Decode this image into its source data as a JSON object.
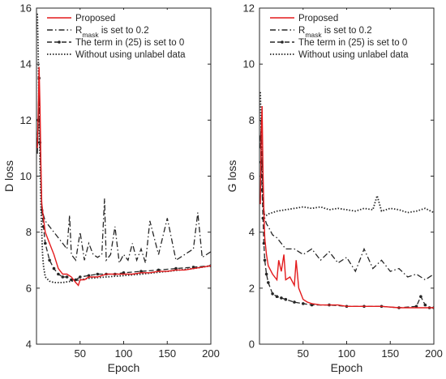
{
  "chart_data": [
    {
      "type": "line",
      "xlabel": "Epoch",
      "ylabel": "D loss",
      "xlim": [
        0,
        200
      ],
      "ylim": [
        4,
        16
      ],
      "xticks": [
        "50",
        "100",
        "150",
        "200"
      ],
      "yticks": [
        "4",
        "6",
        "8",
        "10",
        "12",
        "14",
        "16"
      ],
      "legend_position": "top-right",
      "series": [
        {
          "name": "Proposed",
          "color": "#e31a1c",
          "style": "solid",
          "x": [
            1,
            2,
            3,
            4,
            5,
            6,
            8,
            10,
            15,
            20,
            25,
            30,
            35,
            40,
            45,
            48,
            50,
            55,
            60,
            70,
            80,
            90,
            100,
            110,
            120,
            130,
            140,
            150,
            160,
            170,
            180,
            190,
            200
          ],
          "y": [
            11.0,
            12.2,
            13.9,
            12.5,
            10.5,
            9.0,
            8.5,
            8.0,
            7.6,
            7.2,
            6.7,
            6.5,
            6.5,
            6.4,
            6.2,
            6.1,
            6.3,
            6.3,
            6.4,
            6.4,
            6.5,
            6.5,
            6.5,
            6.5,
            6.55,
            6.55,
            6.6,
            6.6,
            6.65,
            6.65,
            6.7,
            6.75,
            6.8
          ]
        },
        {
          "name": "R_mask is set to 0.2",
          "color": "#262626",
          "style": "dashdot",
          "x": [
            1,
            2,
            3,
            4,
            6,
            8,
            10,
            15,
            20,
            25,
            30,
            35,
            38,
            40,
            45,
            50,
            55,
            60,
            65,
            70,
            75,
            78,
            80,
            85,
            90,
            95,
            100,
            105,
            110,
            115,
            120,
            125,
            130,
            140,
            150,
            160,
            170,
            180,
            185,
            190,
            200
          ],
          "y": [
            10.8,
            11.8,
            13.5,
            11.6,
            9.0,
            8.6,
            8.4,
            8.2,
            8.0,
            7.8,
            7.6,
            7.4,
            8.6,
            7.2,
            7.0,
            8.0,
            7.0,
            7.6,
            7.2,
            7.1,
            7.2,
            9.2,
            7.0,
            7.2,
            8.2,
            6.9,
            7.2,
            7.0,
            7.6,
            7.0,
            7.4,
            6.9,
            8.4,
            7.2,
            8.5,
            7.0,
            7.2,
            7.4,
            8.7,
            7.1,
            7.3
          ]
        },
        {
          "name": "The term in (25) is set to 0",
          "color": "#262626",
          "style": "dashed-markers",
          "x": [
            1,
            2,
            3,
            4,
            6,
            8,
            10,
            15,
            20,
            25,
            30,
            35,
            40,
            45,
            50,
            60,
            70,
            80,
            90,
            100,
            120,
            140,
            160,
            180,
            200
          ],
          "y": [
            11.2,
            12.0,
            13.5,
            11.2,
            8.8,
            8.2,
            7.6,
            7.0,
            6.7,
            6.5,
            6.4,
            6.4,
            6.3,
            6.3,
            6.4,
            6.45,
            6.5,
            6.5,
            6.5,
            6.55,
            6.6,
            6.65,
            6.7,
            6.75,
            6.8
          ]
        },
        {
          "name": "Without using unlabel data",
          "color": "#262626",
          "style": "dotted",
          "x": [
            1,
            2,
            3,
            4,
            5,
            6,
            7,
            8,
            10,
            15,
            20,
            30,
            40,
            50,
            60,
            80,
            100,
            120,
            150,
            180,
            200
          ],
          "y": [
            15.8,
            14.5,
            12.0,
            10.5,
            9.0,
            8.0,
            7.2,
            6.8,
            6.4,
            6.25,
            6.2,
            6.2,
            6.25,
            6.3,
            6.35,
            6.4,
            6.45,
            6.5,
            6.6,
            6.7,
            6.8
          ]
        }
      ]
    },
    {
      "type": "line",
      "xlabel": "Epoch",
      "ylabel": "G loss",
      "xlim": [
        0,
        200
      ],
      "ylim": [
        0,
        12
      ],
      "xticks": [
        "50",
        "100",
        "150",
        "200"
      ],
      "yticks": [
        "0",
        "2",
        "4",
        "6",
        "8",
        "10",
        "12"
      ],
      "legend_position": "top-right",
      "series": [
        {
          "name": "Proposed",
          "color": "#e31a1c",
          "style": "solid",
          "x": [
            1,
            2,
            3,
            4,
            5,
            6,
            8,
            10,
            15,
            20,
            22,
            25,
            28,
            30,
            35,
            40,
            42,
            45,
            50,
            55,
            60,
            70,
            80,
            90,
            100,
            120,
            140,
            160,
            180,
            200
          ],
          "y": [
            5.0,
            7.5,
            8.5,
            6.2,
            4.8,
            3.8,
            3.2,
            2.8,
            2.5,
            2.3,
            3.0,
            2.6,
            3.2,
            2.3,
            2.4,
            2.1,
            3.0,
            2.0,
            1.6,
            1.5,
            1.45,
            1.4,
            1.4,
            1.4,
            1.35,
            1.35,
            1.35,
            1.3,
            1.3,
            1.3
          ]
        },
        {
          "name": "R_mask is set to 0.2",
          "color": "#262626",
          "style": "dashdot",
          "x": [
            1,
            2,
            3,
            4,
            5,
            6,
            8,
            10,
            15,
            20,
            25,
            30,
            40,
            50,
            60,
            70,
            80,
            90,
            100,
            110,
            120,
            130,
            140,
            150,
            160,
            170,
            180,
            190,
            200
          ],
          "y": [
            7.0,
            8.0,
            6.5,
            5.2,
            4.8,
            4.5,
            4.3,
            4.2,
            3.9,
            3.8,
            3.6,
            3.4,
            3.4,
            3.2,
            3.4,
            3.0,
            3.3,
            2.9,
            3.1,
            2.6,
            3.4,
            2.7,
            3.0,
            2.6,
            2.7,
            2.4,
            2.5,
            2.3,
            2.5
          ]
        },
        {
          "name": "The term in (25) is set to 0",
          "color": "#262626",
          "style": "dashed-markers",
          "x": [
            1,
            2,
            3,
            4,
            5,
            6,
            8,
            10,
            15,
            20,
            25,
            30,
            40,
            50,
            60,
            80,
            100,
            120,
            140,
            160,
            180,
            185,
            190,
            195,
            200
          ],
          "y": [
            7.4,
            6.5,
            5.5,
            4.5,
            3.6,
            3.0,
            2.5,
            2.2,
            1.8,
            1.7,
            1.65,
            1.6,
            1.5,
            1.45,
            1.4,
            1.4,
            1.35,
            1.35,
            1.35,
            1.3,
            1.35,
            1.7,
            1.4,
            1.3,
            1.3
          ]
        },
        {
          "name": "Without using unlabel data",
          "color": "#262626",
          "style": "dotted",
          "x": [
            1,
            2,
            3,
            4,
            5,
            6,
            8,
            10,
            15,
            20,
            30,
            40,
            50,
            60,
            70,
            80,
            90,
            100,
            110,
            120,
            130,
            135,
            140,
            150,
            160,
            170,
            180,
            190,
            200
          ],
          "y": [
            9.0,
            7.5,
            6.0,
            5.0,
            4.7,
            4.6,
            4.6,
            4.65,
            4.7,
            4.75,
            4.8,
            4.85,
            4.9,
            4.85,
            4.9,
            4.8,
            4.85,
            4.8,
            4.75,
            4.85,
            4.8,
            5.3,
            4.75,
            4.85,
            4.8,
            4.7,
            4.75,
            4.85,
            4.7
          ]
        }
      ]
    }
  ]
}
